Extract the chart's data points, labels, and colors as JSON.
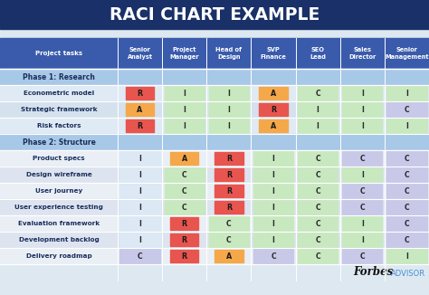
{
  "title": "RACI CHART EXAMPLE",
  "title_bg": "#1a3068",
  "title_color": "#ffffff",
  "header_bg": "#3a5bab",
  "header_color": "#ffffff",
  "phase_bg": "#a8c8e8",
  "phase_color": "#1a2e5a",
  "fig_bg": "#dde8f0",
  "col_headers": [
    "Project tasks",
    "Senior\nAnalyst",
    "Project\nManager",
    "Head of\nDesign",
    "SVP\nFinance",
    "SEO\nLead",
    "Sales\nDirector",
    "Senior\nManagement"
  ],
  "rows": [
    {
      "label": "Phase 1: Research",
      "values": [
        "",
        "",
        "",
        "",
        "",
        "",
        ""
      ],
      "is_phase": true
    },
    {
      "label": "Econometric model",
      "values": [
        "R",
        "I",
        "I",
        "A",
        "C",
        "I",
        "I"
      ],
      "is_phase": false
    },
    {
      "label": "Strategic framework",
      "values": [
        "A",
        "I",
        "I",
        "R",
        "I",
        "I",
        "C"
      ],
      "is_phase": false
    },
    {
      "label": "Risk factors",
      "values": [
        "R",
        "I",
        "I",
        "A",
        "I",
        "I",
        "I"
      ],
      "is_phase": false
    },
    {
      "label": "Phase 2: Structure",
      "values": [
        "",
        "",
        "",
        "",
        "",
        "",
        ""
      ],
      "is_phase": true
    },
    {
      "label": "Product specs",
      "values": [
        "I",
        "A",
        "R",
        "I",
        "C",
        "C",
        "C"
      ],
      "is_phase": false
    },
    {
      "label": "Design wireframe",
      "values": [
        "I",
        "C",
        "R",
        "I",
        "C",
        "I",
        "C"
      ],
      "is_phase": false
    },
    {
      "label": "User journey",
      "values": [
        "I",
        "C",
        "R",
        "I",
        "C",
        "C",
        "C"
      ],
      "is_phase": false
    },
    {
      "label": "User experience testing",
      "values": [
        "I",
        "C",
        "R",
        "I",
        "C",
        "C",
        "C"
      ],
      "is_phase": false
    },
    {
      "label": "Evaluation framework",
      "values": [
        "I",
        "R",
        "C",
        "I",
        "C",
        "I",
        "C"
      ],
      "is_phase": false
    },
    {
      "label": "Development backlog",
      "values": [
        "I",
        "R",
        "C",
        "I",
        "C",
        "I",
        "C"
      ],
      "is_phase": false
    },
    {
      "label": "Delivery roadmap",
      "values": [
        "C",
        "R",
        "A",
        "C",
        "C",
        "C",
        "I"
      ],
      "is_phase": false
    }
  ],
  "cell_colors": {
    "R": "#e8554e",
    "A": "#f4a84a",
    "C_purple": "#c8c8e8",
    "C_green": "#c8e8c8",
    "I_green": "#d4edd4",
    "I_plain": ""
  },
  "row_colors": [
    "#a8c8e8",
    "#e8f0f8",
    "#dde8f0",
    "#e8f0f8",
    "#a8c8e8",
    "#f0f4f8",
    "#e8ecf4",
    "#f0f4f8",
    "#e8ecf4",
    "#f0f4f8",
    "#e8ecf4",
    "#e8ecf4"
  ],
  "col_cell_colors": {
    "0_1": {
      "R": "#e8554e",
      "A": "#f4a84a",
      "C": "#d0d0f0",
      "I": "#e8f0f8"
    },
    "0_2": {
      "R": "#e8554e",
      "A": "#f4a84a",
      "C": "#c8e8c8",
      "I": "#c8e8c8"
    },
    "0_3": {
      "R": "#e8554e",
      "A": "#f4a84a",
      "C": "#c8e8c8",
      "I": "#c8e8c8"
    },
    "0_4": {
      "R": "#e8554e",
      "A": "#f4a84a",
      "C": "#d0d0f0",
      "I": "#c8e8c8"
    },
    "0_5": {
      "R": "#e8554e",
      "A": "#f4a84a",
      "C": "#c8e8c8",
      "I": "#c8e8c8"
    },
    "0_6": {
      "R": "#e8554e",
      "A": "#f4a84a",
      "C": "#d0d0f0",
      "I": "#c8e8c8"
    },
    "0_7": {
      "R": "#e8554e",
      "A": "#f4a84a",
      "C": "#d0d0f0",
      "I": "#c8e8c8"
    }
  }
}
